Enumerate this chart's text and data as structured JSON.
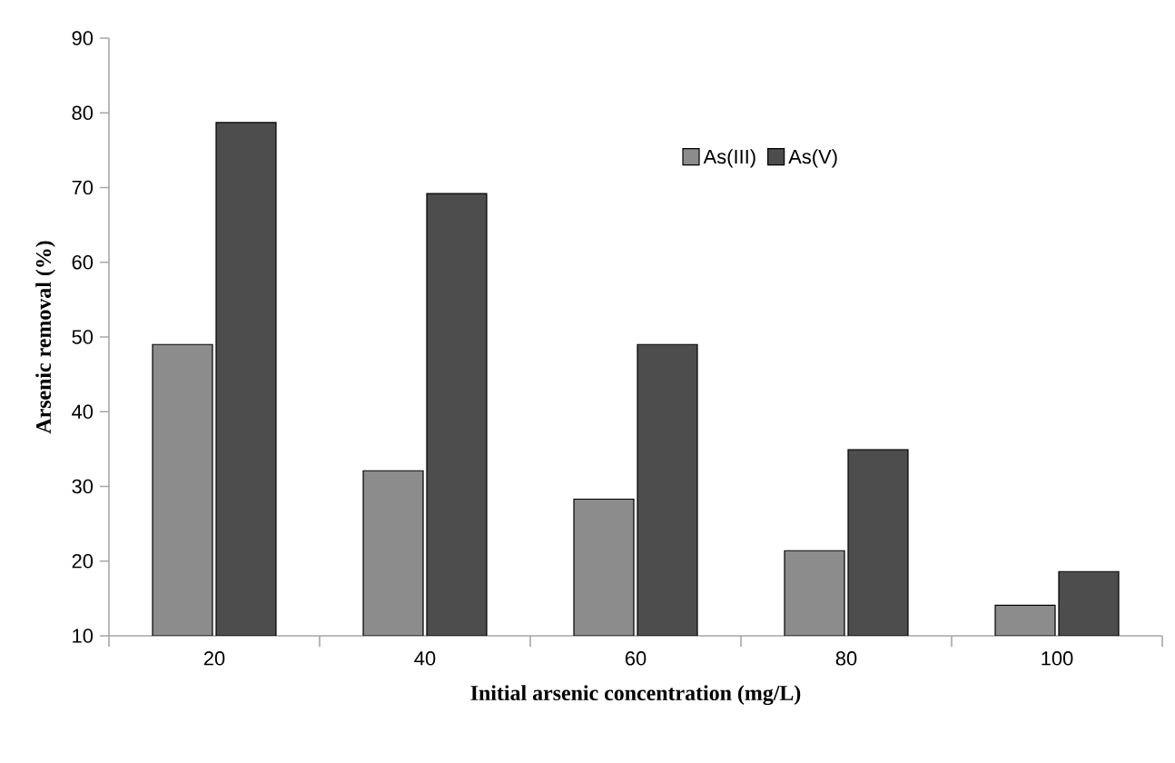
{
  "chart_data": {
    "type": "bar",
    "xlabel": "Initial arsenic concentration (mg/L)",
    "ylabel": "Arsenic removal (%)",
    "categories": [
      "20",
      "40",
      "60",
      "80",
      "100"
    ],
    "series": [
      {
        "name": "As(III)",
        "color": "#8c8c8c",
        "values": [
          49.0,
          32.1,
          28.3,
          21.4,
          14.1
        ]
      },
      {
        "name": "As(V)",
        "color": "#4d4d4d",
        "values": [
          78.7,
          69.2,
          49.0,
          34.9,
          18.6
        ]
      }
    ],
    "ylim": [
      10,
      90
    ],
    "yticks": [
      10,
      20,
      30,
      40,
      50,
      60,
      70,
      80,
      90
    ],
    "legend": "top"
  }
}
